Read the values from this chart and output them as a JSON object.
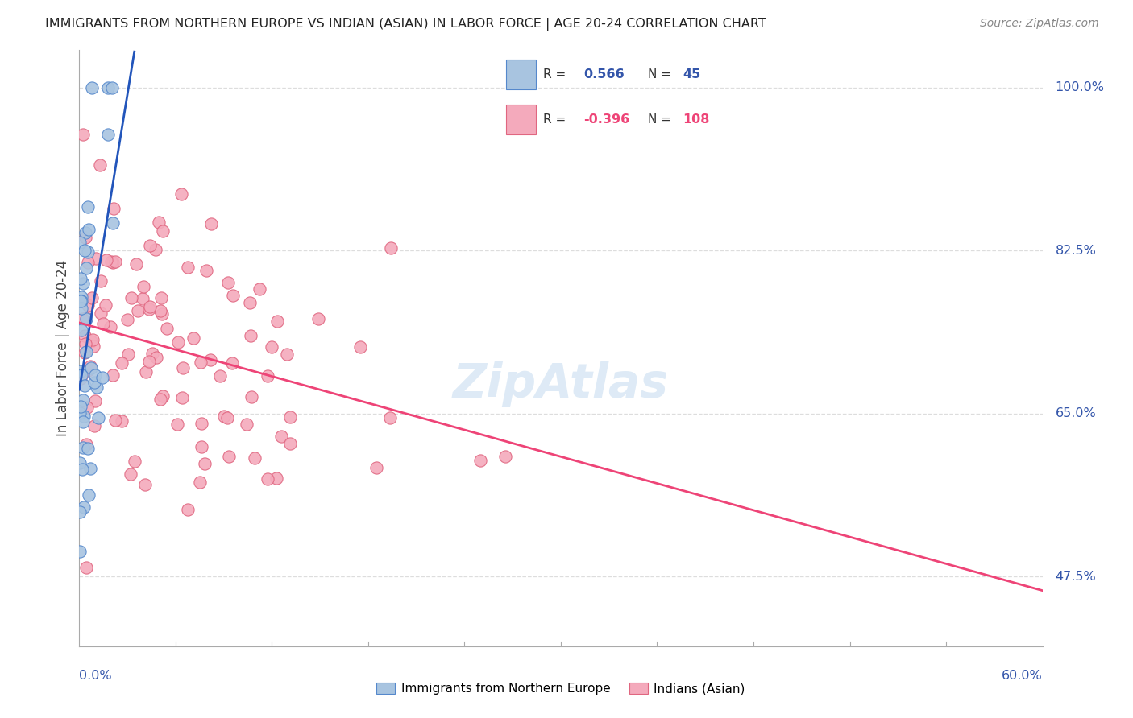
{
  "title": "IMMIGRANTS FROM NORTHERN EUROPE VS INDIAN (ASIAN) IN LABOR FORCE | AGE 20-24 CORRELATION CHART",
  "source": "Source: ZipAtlas.com",
  "ylabel": "In Labor Force | Age 20-24",
  "yticks": [
    47.5,
    65.0,
    82.5,
    100.0
  ],
  "xlim": [
    0.0,
    60.0
  ],
  "ylim": [
    40.0,
    104.0
  ],
  "legend_label_blue": "Immigrants from Northern Europe",
  "legend_label_pink": "Indians (Asian)",
  "R_blue": 0.566,
  "N_blue": 45,
  "R_pink": -0.396,
  "N_pink": 108,
  "blue_color": "#A8C4E0",
  "pink_color": "#F4AABC",
  "blue_edge_color": "#5588CC",
  "pink_edge_color": "#E06680",
  "blue_line_color": "#2255BB",
  "pink_line_color": "#EE4477",
  "watermark_color": "#C8DDF0",
  "bg_color": "#FFFFFF",
  "grid_color": "#DDDDDD",
  "axis_color": "#AAAAAA",
  "label_color": "#3355AA",
  "title_color": "#222222",
  "source_color": "#888888"
}
